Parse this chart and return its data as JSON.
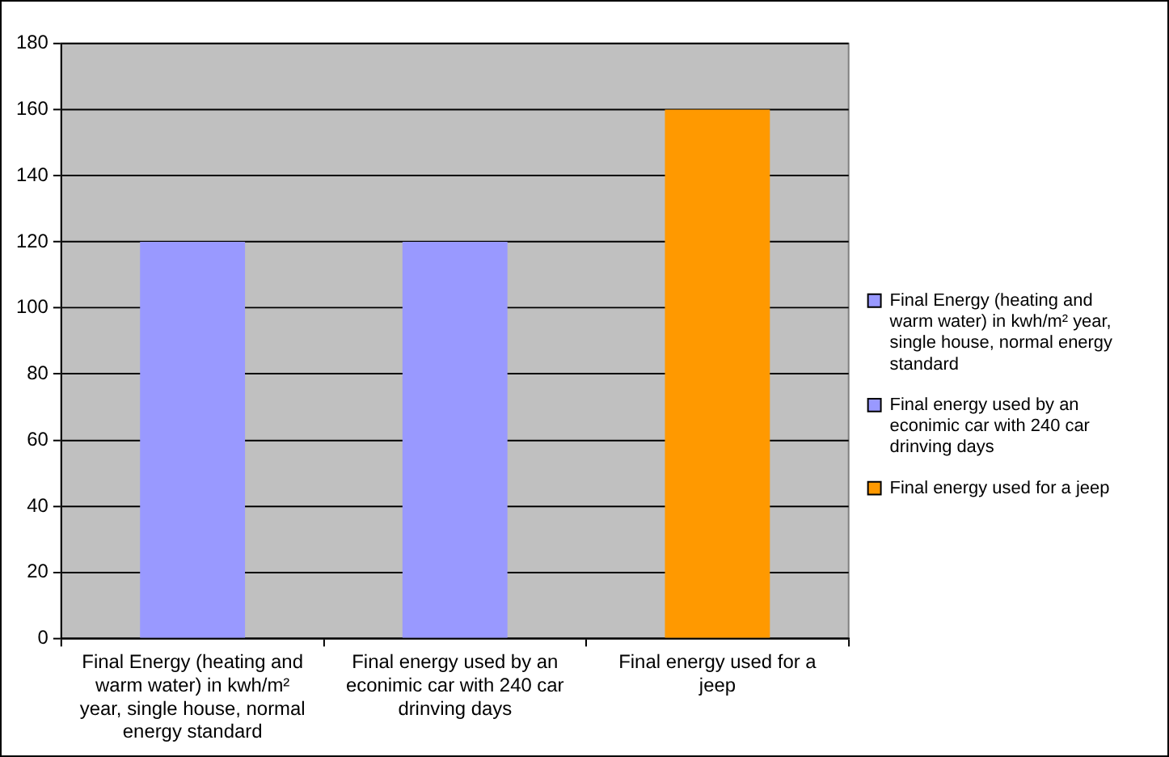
{
  "chart_data": {
    "type": "bar",
    "categories": [
      "Final Energy (heating and warm water) in kwh/m² year, single house, normal energy standard",
      "Final energy used by an econimic car with 240 car drinving days",
      "Final energy used for a jeep"
    ],
    "series": [
      {
        "name": "Final Energy (heating and warm water) in kwh/m² year, single house, normal energy standard",
        "color": "#9999ff",
        "values": [
          120,
          null,
          null
        ]
      },
      {
        "name": "Final energy used by an econimic car with 240 car drinving days",
        "color": "#9999ff",
        "values": [
          null,
          120,
          null
        ]
      },
      {
        "name": "Final energy used for a jeep",
        "color": "#ff9900",
        "values": [
          null,
          null,
          160
        ]
      }
    ],
    "ylim": [
      0,
      180
    ],
    "yticks": [
      0,
      20,
      40,
      60,
      80,
      100,
      120,
      140,
      160,
      180
    ],
    "grid": "y",
    "legend": "right"
  }
}
